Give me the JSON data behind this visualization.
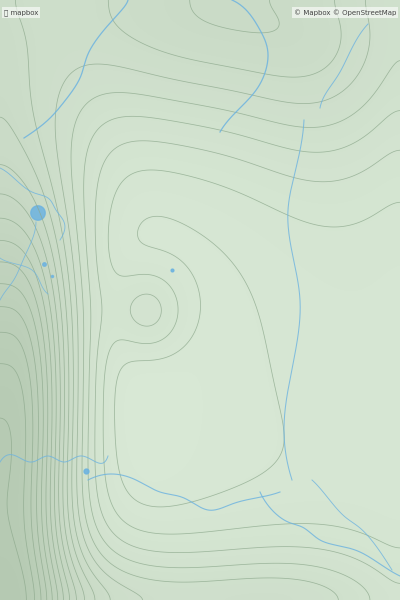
{
  "background_color": "#d8e8d5",
  "contour_line_color": "#8ca88c",
  "water_color": "#6db3e0",
  "figsize": [
    4.0,
    6.0
  ],
  "dpi": 100,
  "shade_low": "#d8e8d5",
  "shade_mid": "#c8d9c5",
  "shade_high": "#b5c9b2"
}
